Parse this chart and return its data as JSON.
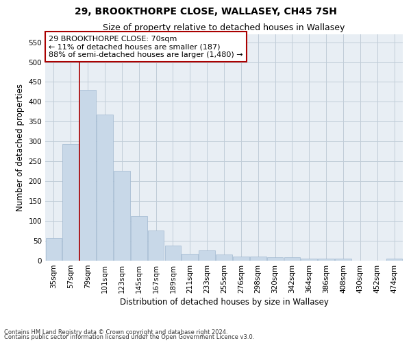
{
  "title": "29, BROOKTHORPE CLOSE, WALLASEY, CH45 7SH",
  "subtitle": "Size of property relative to detached houses in Wallasey",
  "xlabel": "Distribution of detached houses by size in Wallasey",
  "ylabel": "Number of detached properties",
  "bar_color": "#c8d8e8",
  "bar_edge_color": "#a0b8d0",
  "grid_color": "#c0ccd8",
  "background_color": "#e8eef4",
  "categories": [
    "35sqm",
    "57sqm",
    "79sqm",
    "101sqm",
    "123sqm",
    "145sqm",
    "167sqm",
    "189sqm",
    "211sqm",
    "233sqm",
    "255sqm",
    "276sqm",
    "298sqm",
    "320sqm",
    "342sqm",
    "364sqm",
    "386sqm",
    "408sqm",
    "430sqm",
    "452sqm",
    "474sqm"
  ],
  "values": [
    57,
    293,
    430,
    368,
    227,
    113,
    76,
    38,
    17,
    26,
    15,
    11,
    10,
    8,
    8,
    5,
    5,
    5,
    0,
    0,
    5
  ],
  "ylim": [
    0,
    570
  ],
  "yticks": [
    0,
    50,
    100,
    150,
    200,
    250,
    300,
    350,
    400,
    450,
    500,
    550
  ],
  "property_line_x": 1.5,
  "property_line_color": "#aa0000",
  "annotation_text": "29 BROOKTHORPE CLOSE: 70sqm\n← 11% of detached houses are smaller (187)\n88% of semi-detached houses are larger (1,480) →",
  "annotation_box_color": "#ffffff",
  "annotation_box_edgecolor": "#aa0000",
  "footnote1": "Contains HM Land Registry data © Crown copyright and database right 2024.",
  "footnote2": "Contains public sector information licensed under the Open Government Licence v3.0.",
  "title_fontsize": 10,
  "subtitle_fontsize": 9,
  "tick_fontsize": 7.5,
  "label_fontsize": 8.5,
  "annot_fontsize": 8
}
